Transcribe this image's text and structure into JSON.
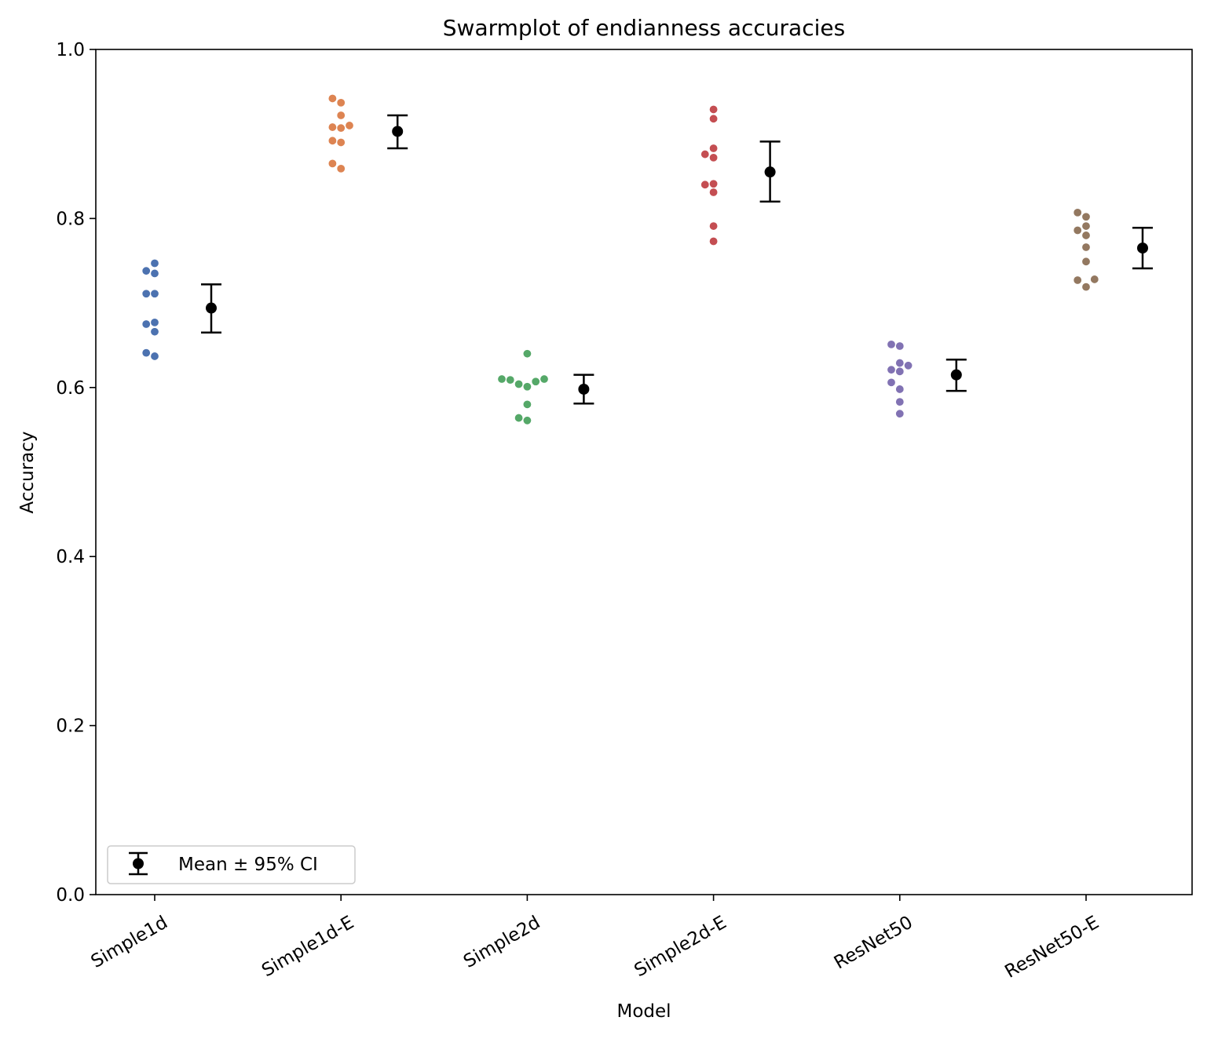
{
  "chart_data": {
    "type": "scatter",
    "title": "Swarmplot of endianness accuracies",
    "xlabel": "Model",
    "ylabel": "Accuracy",
    "ylim": [
      0.0,
      1.0
    ],
    "yticks": [
      0.0,
      0.2,
      0.4,
      0.6,
      0.8,
      1.0
    ],
    "ytick_labels": [
      "0.0",
      "0.2",
      "0.4",
      "0.6",
      "0.8",
      "1.0"
    ],
    "categories": [
      "Simple1d",
      "Simple1d-E",
      "Simple2d",
      "Simple2d-E",
      "ResNet50",
      "ResNet50-E"
    ],
    "grid": false,
    "legend": {
      "label": "Mean ± 95% CI",
      "placement": "lower-left"
    },
    "series": [
      {
        "category": "Simple1d",
        "color": "#4c72b0",
        "points": [
          0.747,
          0.738,
          0.735,
          0.711,
          0.711,
          0.677,
          0.675,
          0.666,
          0.641,
          0.637
        ],
        "mean": 0.694,
        "ci_low": 0.665,
        "ci_high": 0.722
      },
      {
        "category": "Simple1d-E",
        "color": "#dd8452",
        "points": [
          0.942,
          0.937,
          0.922,
          0.91,
          0.908,
          0.907,
          0.892,
          0.89,
          0.865,
          0.859
        ],
        "mean": 0.903,
        "ci_low": 0.883,
        "ci_high": 0.922
      },
      {
        "category": "Simple2d",
        "color": "#55a868",
        "points": [
          0.64,
          0.61,
          0.61,
          0.609,
          0.607,
          0.604,
          0.601,
          0.58,
          0.564,
          0.561
        ],
        "mean": 0.598,
        "ci_low": 0.581,
        "ci_high": 0.615
      },
      {
        "category": "Simple2d-E",
        "color": "#c44e52",
        "points": [
          0.929,
          0.918,
          0.883,
          0.876,
          0.872,
          0.841,
          0.84,
          0.831,
          0.791,
          0.773
        ],
        "mean": 0.855,
        "ci_low": 0.82,
        "ci_high": 0.891
      },
      {
        "category": "ResNet50",
        "color": "#8172b3",
        "points": [
          0.651,
          0.649,
          0.629,
          0.626,
          0.621,
          0.619,
          0.606,
          0.598,
          0.583,
          0.569
        ],
        "mean": 0.615,
        "ci_low": 0.596,
        "ci_high": 0.633
      },
      {
        "category": "ResNet50-E",
        "color": "#937860",
        "points": [
          0.807,
          0.802,
          0.791,
          0.786,
          0.78,
          0.766,
          0.749,
          0.728,
          0.727,
          0.719
        ],
        "mean": 0.765,
        "ci_low": 0.741,
        "ci_high": 0.789
      }
    ]
  }
}
